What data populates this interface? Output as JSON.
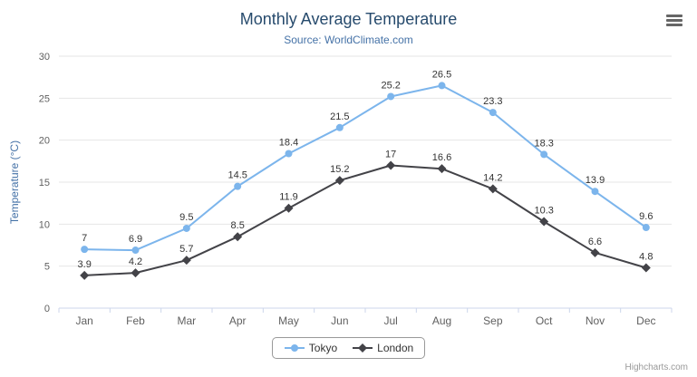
{
  "header": {
    "title": "Monthly Average Temperature",
    "subtitle": "Source: WorldClimate.com"
  },
  "menu": {
    "icon": "hamburger-menu-icon"
  },
  "credits": {
    "label": "Highcharts.com"
  },
  "chart_data": {
    "type": "line",
    "title": "Monthly Average Temperature",
    "subtitle": "Source: WorldClimate.com",
    "categories": [
      "Jan",
      "Feb",
      "Mar",
      "Apr",
      "May",
      "Jun",
      "Jul",
      "Aug",
      "Sep",
      "Oct",
      "Nov",
      "Dec"
    ],
    "series": [
      {
        "name": "Tokyo",
        "color": "#7cb5ec",
        "marker": "circle",
        "values": [
          7,
          6.9,
          9.5,
          14.5,
          18.4,
          21.5,
          25.2,
          26.5,
          23.3,
          18.3,
          13.9,
          9.6
        ]
      },
      {
        "name": "London",
        "color": "#434348",
        "marker": "diamond",
        "values": [
          3.9,
          4.2,
          5.7,
          8.5,
          11.9,
          15.2,
          17,
          16.6,
          14.2,
          10.3,
          6.6,
          4.8
        ]
      }
    ],
    "xlabel": "",
    "ylabel": "Temperature (°C)",
    "ylim": [
      0,
      30
    ],
    "yticks": [
      0,
      5,
      10,
      15,
      20,
      25,
      30
    ],
    "grid": true,
    "legend_position": "bottom",
    "data_labels": true
  }
}
